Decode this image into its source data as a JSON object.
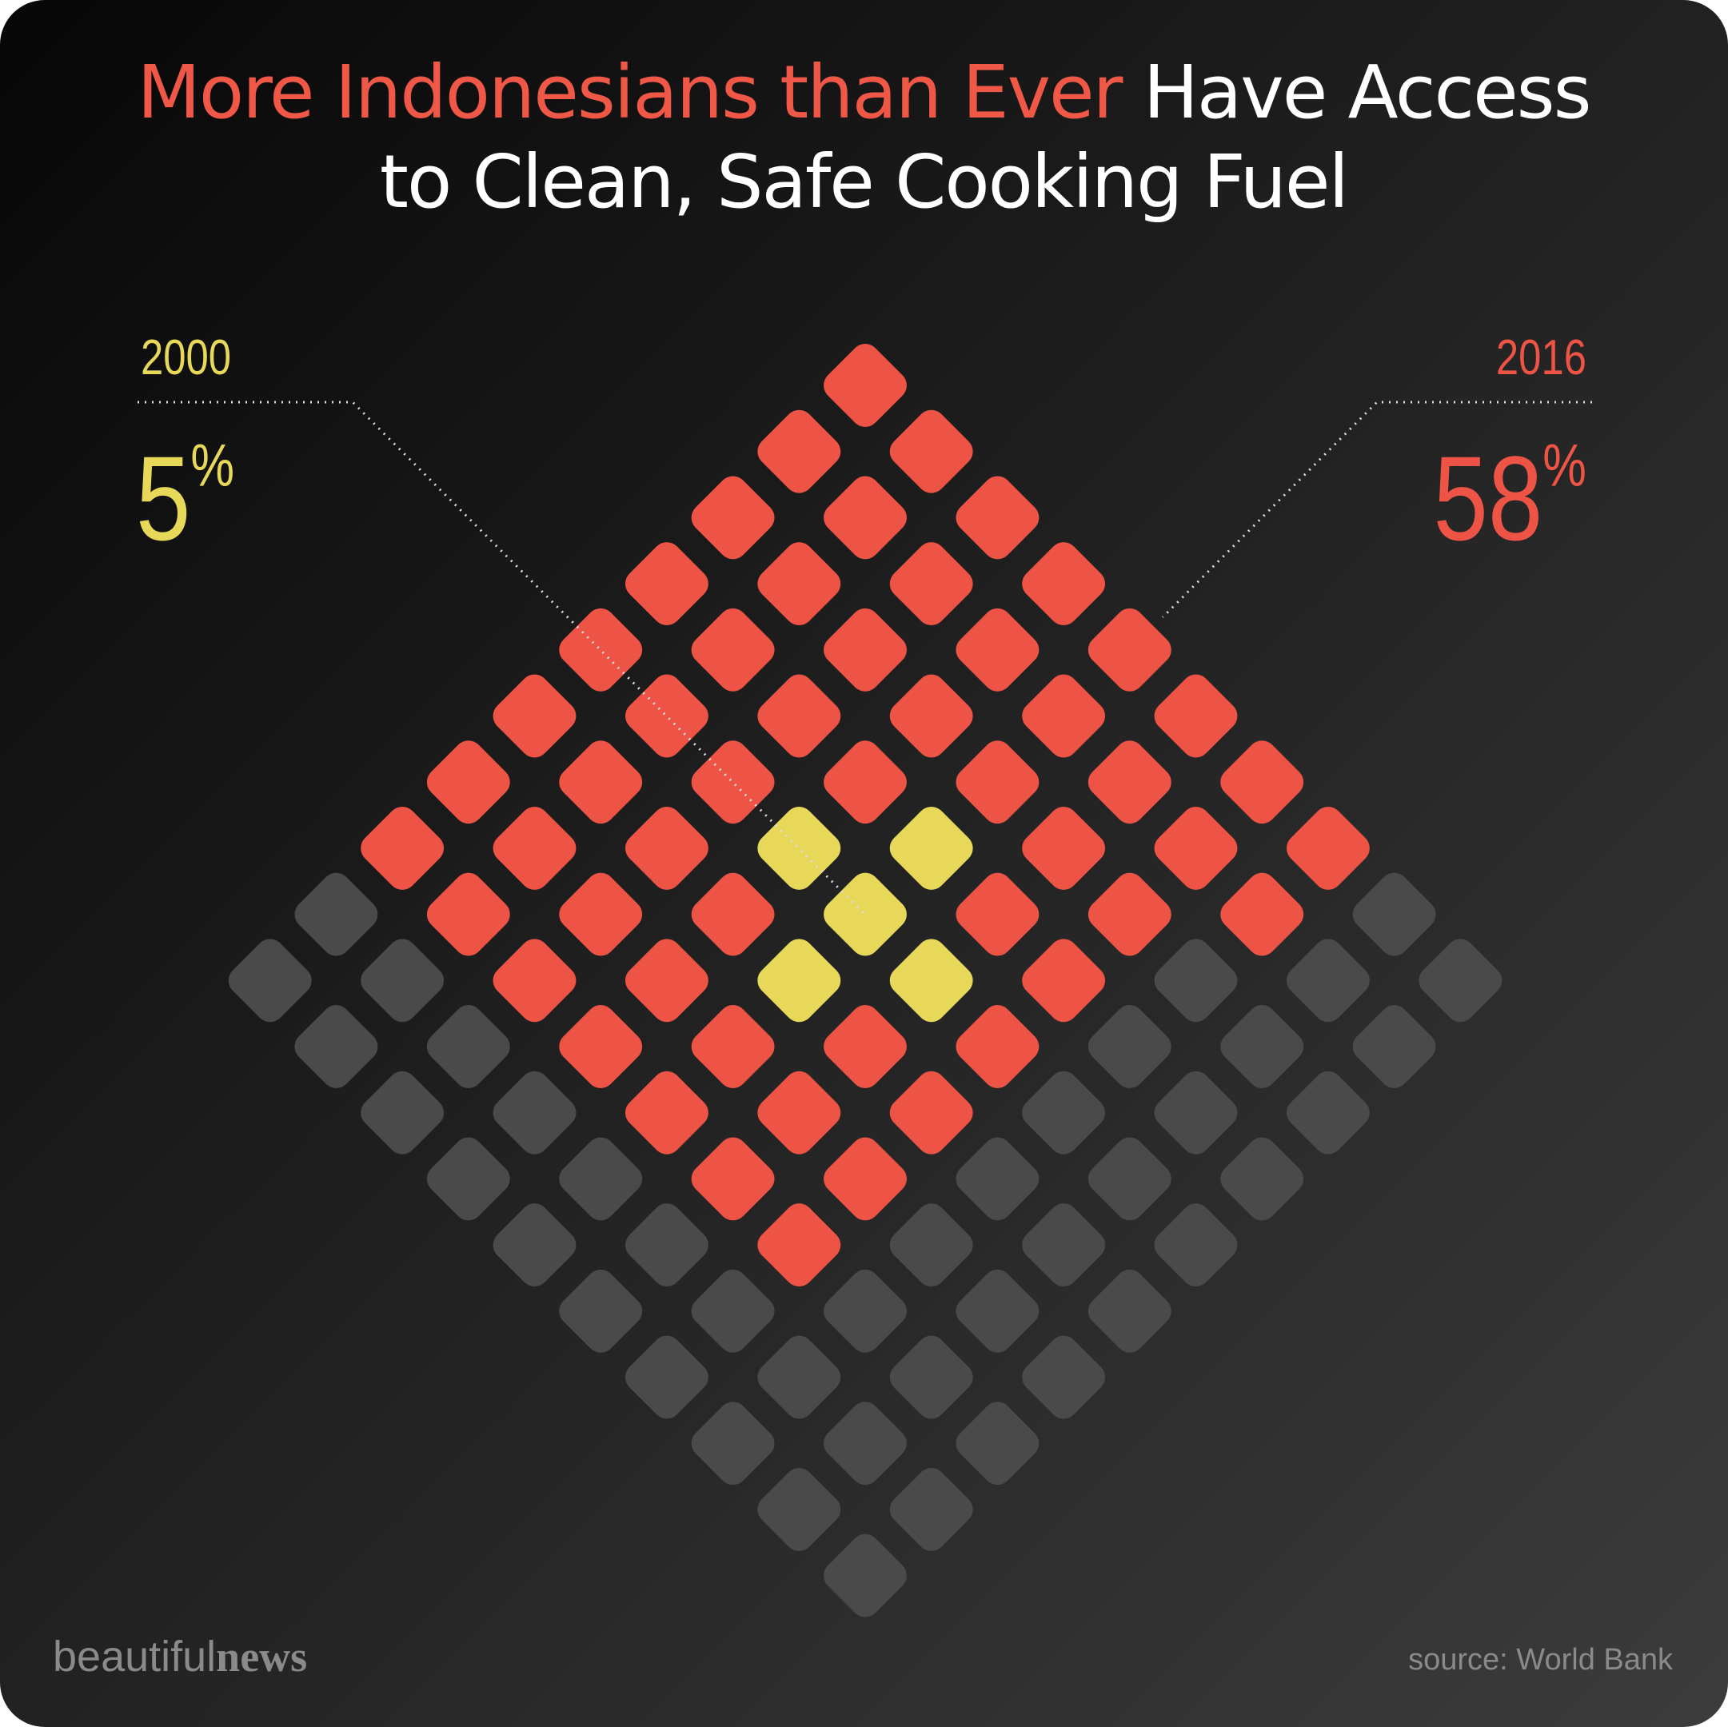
{
  "chart_data": {
    "type": "waffle",
    "title_highlight": "More Indonesians than Ever",
    "title": "Have Access to Clean, Safe Cooking Fuel",
    "categories": [
      "2000",
      "2016"
    ],
    "values": [
      5,
      58
    ],
    "value_labels": [
      "5%",
      "58%"
    ],
    "colors": [
      "#e8d85a",
      "#ee5446"
    ],
    "empty_color": "#4a4a4a",
    "logo": {
      "light": "beautiful",
      "bold": "news"
    },
    "source": "source: World Bank"
  }
}
